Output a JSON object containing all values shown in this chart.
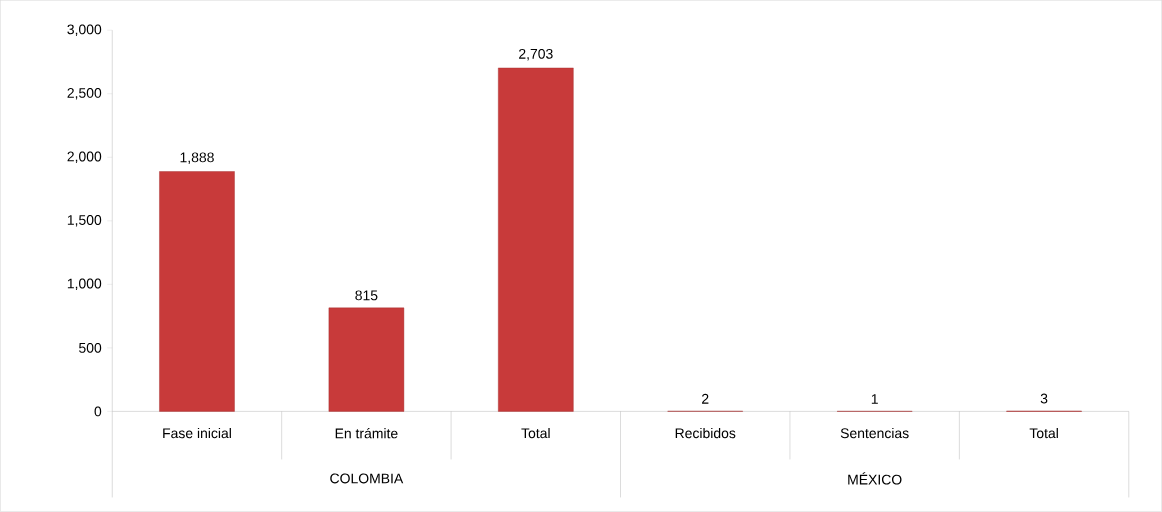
{
  "chart_data": {
    "type": "bar",
    "categories": [
      "Fase inicial",
      "En trámite",
      "Total",
      "Recibidos",
      "Sentencias",
      "Total"
    ],
    "values": [
      1888,
      815,
      2703,
      2,
      1,
      3
    ],
    "color": "#c83a3a",
    "ylim": [
      0,
      3000
    ],
    "yticks": [
      0,
      500,
      {
        "value": 1000,
        "label": "1,000"
      },
      {
        "value": 1500,
        "label": "1,500"
      },
      {
        "value": 2000,
        "label": "2,000"
      },
      {
        "value": 2500,
        "label": "2,500"
      },
      {
        "value": 3000,
        "label": "3,000"
      }
    ],
    "value_labels": [
      "1,888",
      "815",
      "2,703",
      "2",
      "1",
      "3"
    ],
    "grid": false,
    "annotations": [
      "COLOMBIA",
      "MÉXICO"
    ]
  }
}
